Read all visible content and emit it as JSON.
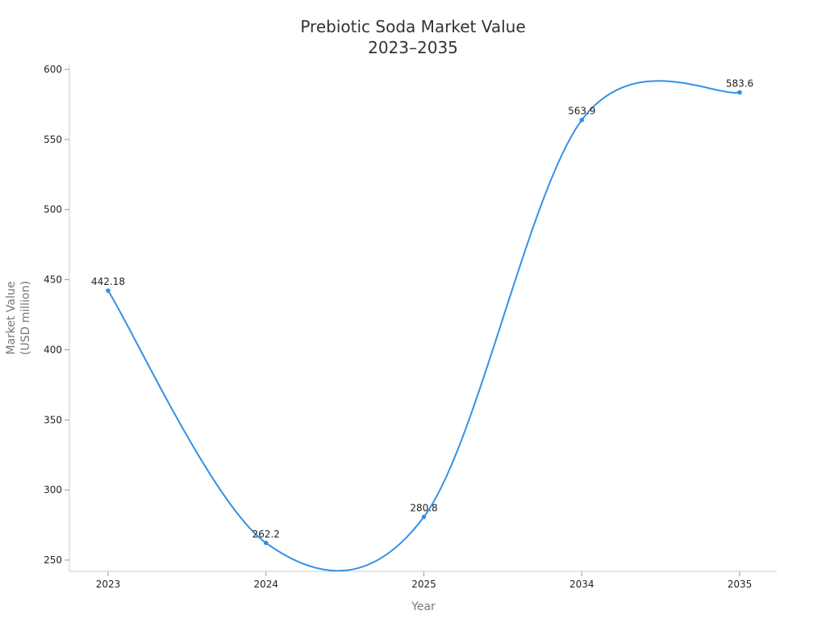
{
  "chart_data": {
    "type": "line",
    "title_line1": "Prebiotic Soda Market Value",
    "title_line2": "2023–2035",
    "xlabel": "Year",
    "ylabel_line1": "Market Value",
    "ylabel_line2": "(USD million)",
    "categories": [
      "2023",
      "2024",
      "2025",
      "2034",
      "2035"
    ],
    "values": [
      442.18,
      262.2,
      280.8,
      563.9,
      583.6
    ],
    "data_labels": [
      "442.18",
      "262.2",
      "280.8",
      "563.9",
      "583.6"
    ],
    "yticks": [
      250,
      300,
      350,
      400,
      450,
      500,
      550,
      600
    ],
    "ylim": [
      242,
      603
    ],
    "line_color": "#3390e6",
    "smooth": true,
    "grid": false
  }
}
